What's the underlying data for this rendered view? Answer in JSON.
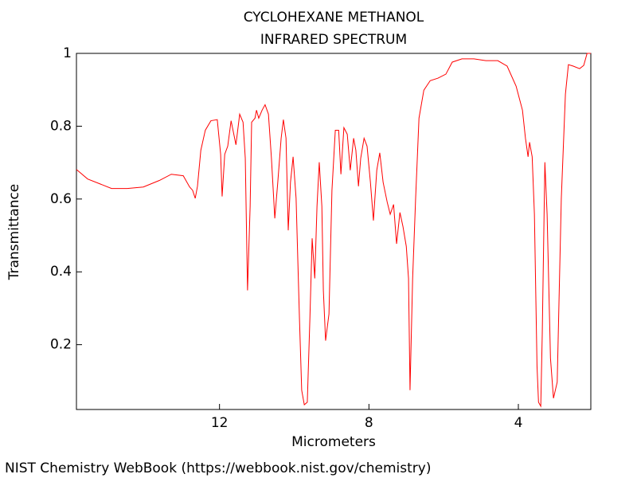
{
  "chart_data": {
    "type": "line",
    "title": "CYCLOHEXANE METHANOL",
    "subtitle": "INFRARED SPECTRUM",
    "x_label": "Micrometers",
    "y_label": "Transmittance",
    "source": "NIST Chemistry WebBook (https://webbook.nist.gov/chemistry)",
    "color": "#ff0000",
    "xlim": [
      15.83,
      2.06
    ],
    "ylim": [
      0.022,
      1.0
    ],
    "xticks": [
      12,
      8,
      4
    ],
    "yticks": [
      0.2,
      0.4,
      0.6,
      0.8,
      1
    ],
    "x": [
      15.83,
      15.53,
      15.21,
      14.89,
      14.47,
      14.04,
      13.61,
      13.29,
      12.97,
      12.8,
      12.72,
      12.65,
      12.59,
      12.5,
      12.38,
      12.23,
      12.06,
      11.97,
      11.93,
      11.86,
      11.78,
      11.69,
      11.56,
      11.46,
      11.37,
      11.31,
      11.25,
      11.18,
      11.14,
      11.05,
      11.01,
      10.95,
      10.86,
      10.78,
      10.69,
      10.61,
      10.52,
      10.44,
      10.35,
      10.29,
      10.22,
      10.16,
      10.1,
      10.03,
      9.95,
      9.86,
      9.8,
      9.73,
      9.65,
      9.58,
      9.52,
      9.45,
      9.39,
      9.33,
      9.26,
      9.22,
      9.16,
      9.07,
      8.99,
      8.9,
      8.81,
      8.75,
      8.67,
      8.58,
      8.5,
      8.41,
      8.35,
      8.28,
      8.22,
      8.13,
      8.05,
      7.96,
      7.88,
      7.79,
      7.71,
      7.62,
      7.51,
      7.43,
      7.34,
      7.26,
      7.17,
      7.09,
      7.0,
      6.94,
      6.9,
      6.83,
      6.75,
      6.66,
      6.53,
      6.36,
      6.15,
      5.94,
      5.77,
      5.51,
      5.19,
      4.87,
      4.55,
      4.3,
      4.06,
      3.89,
      3.81,
      3.74,
      3.7,
      3.63,
      3.57,
      3.5,
      3.46,
      3.4,
      3.36,
      3.29,
      3.23,
      3.14,
      3.06,
      2.96,
      2.85,
      2.74,
      2.66,
      2.53,
      2.36,
      2.25,
      2.16,
      2.06
    ],
    "values": [
      0.681,
      0.655,
      0.642,
      0.629,
      0.629,
      0.633,
      0.651,
      0.668,
      0.664,
      0.633,
      0.624,
      0.602,
      0.635,
      0.734,
      0.789,
      0.815,
      0.818,
      0.723,
      0.607,
      0.723,
      0.745,
      0.815,
      0.749,
      0.833,
      0.811,
      0.712,
      0.349,
      0.58,
      0.811,
      0.822,
      0.844,
      0.822,
      0.844,
      0.859,
      0.833,
      0.712,
      0.547,
      0.646,
      0.767,
      0.818,
      0.767,
      0.514,
      0.646,
      0.716,
      0.602,
      0.273,
      0.075,
      0.035,
      0.042,
      0.273,
      0.492,
      0.382,
      0.58,
      0.701,
      0.58,
      0.349,
      0.211,
      0.284,
      0.624,
      0.789,
      0.789,
      0.668,
      0.796,
      0.778,
      0.679,
      0.767,
      0.734,
      0.635,
      0.712,
      0.767,
      0.745,
      0.646,
      0.541,
      0.679,
      0.727,
      0.646,
      0.591,
      0.558,
      0.585,
      0.477,
      0.563,
      0.525,
      0.47,
      0.382,
      0.075,
      0.382,
      0.602,
      0.822,
      0.899,
      0.925,
      0.932,
      0.943,
      0.976,
      0.985,
      0.985,
      0.98,
      0.98,
      0.965,
      0.91,
      0.844,
      0.767,
      0.716,
      0.756,
      0.716,
      0.558,
      0.141,
      0.042,
      0.031,
      0.229,
      0.701,
      0.558,
      0.163,
      0.053,
      0.097,
      0.602,
      0.888,
      0.969,
      0.965,
      0.958,
      0.967,
      1.0,
      1.0
    ]
  }
}
